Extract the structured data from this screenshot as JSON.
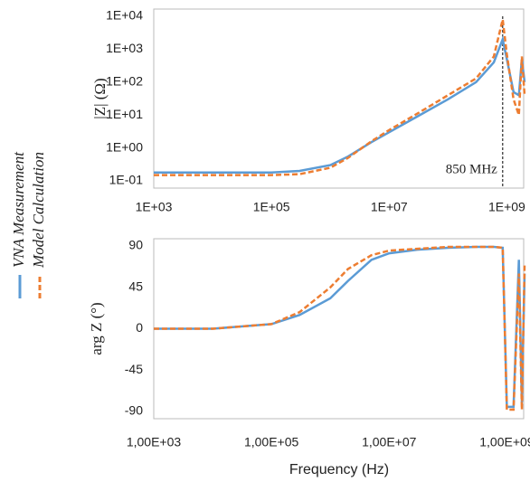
{
  "chart_data": [
    {
      "type": "line",
      "ylabel": "|Z| (Ω)",
      "xscale": "log",
      "yscale": "log",
      "x": [
        1000,
        10000,
        100000,
        300000,
        1000000,
        2000000,
        5000000,
        10000000,
        30000000,
        100000000,
        300000000,
        600000000,
        850000000,
        1000000000,
        1300000000,
        1600000000,
        1800000000,
        2000000000
      ],
      "xlim": [
        1000,
        2000000000
      ],
      "xticks": [
        {
          "value": 1000,
          "label": "1E+03"
        },
        {
          "value": 100000,
          "label": "1E+05"
        },
        {
          "value": 10000000,
          "label": "1E+07"
        },
        {
          "value": 1000000000,
          "label": "1E+09"
        }
      ],
      "ylim": [
        0.1,
        10000
      ],
      "yticks": [
        {
          "value": 10000,
          "label": "1E+04"
        },
        {
          "value": 1000,
          "label": "1E+03"
        },
        {
          "value": 100,
          "label": "1E+02"
        },
        {
          "value": 10,
          "label": "1E+01"
        },
        {
          "value": 1,
          "label": "1E+00"
        },
        {
          "value": 0.1,
          "label": "1E-01"
        }
      ],
      "annotation": {
        "text": "850 MHz",
        "x": 850000000
      },
      "series": [
        {
          "name": "VNA Measurement",
          "color": "#5b9bd5",
          "style": "solid",
          "values": [
            0.18,
            0.18,
            0.18,
            0.2,
            0.3,
            0.55,
            1.5,
            3,
            9,
            30,
            100,
            400,
            2000,
            500,
            50,
            40,
            500,
            100
          ]
        },
        {
          "name": "Model Calculation",
          "color": "#ed7d31",
          "style": "dashed",
          "values": [
            0.15,
            0.15,
            0.15,
            0.16,
            0.25,
            0.5,
            1.6,
            3.5,
            11,
            40,
            130,
            600,
            8000,
            700,
            30,
            10,
            600,
            40
          ]
        }
      ]
    },
    {
      "type": "line",
      "ylabel": "arg Z (°)",
      "xlabel": "Frequency (Hz)",
      "xscale": "log",
      "x": [
        1000,
        10000,
        100000,
        300000,
        1000000,
        2000000,
        5000000,
        10000000,
        30000000,
        100000000,
        300000000,
        600000000,
        850000000,
        1000000000,
        1300000000,
        1600000000,
        1800000000,
        2000000000
      ],
      "xlim": [
        1000,
        2000000000
      ],
      "xticks": [
        {
          "value": 1000,
          "label": "1,00E+03"
        },
        {
          "value": 100000,
          "label": "1,00E+05"
        },
        {
          "value": 10000000,
          "label": "1,00E+07"
        },
        {
          "value": 1000000000,
          "label": "1,00E+09"
        }
      ],
      "ylim": [
        -90,
        90
      ],
      "yticks": [
        90,
        45,
        0,
        -45,
        -90
      ],
      "series": [
        {
          "color": "#5b9bd5",
          "style": "solid",
          "values": [
            0,
            0,
            5,
            15,
            33,
            52,
            75,
            82,
            86,
            88,
            89,
            89,
            88,
            -85,
            -85,
            75,
            -80,
            60
          ]
        },
        {
          "color": "#ed7d31",
          "style": "dashed",
          "values": [
            0,
            0,
            5,
            18,
            45,
            65,
            80,
            85,
            87,
            89,
            89,
            89,
            88,
            -88,
            -88,
            60,
            -88,
            70
          ]
        }
      ]
    }
  ]
}
